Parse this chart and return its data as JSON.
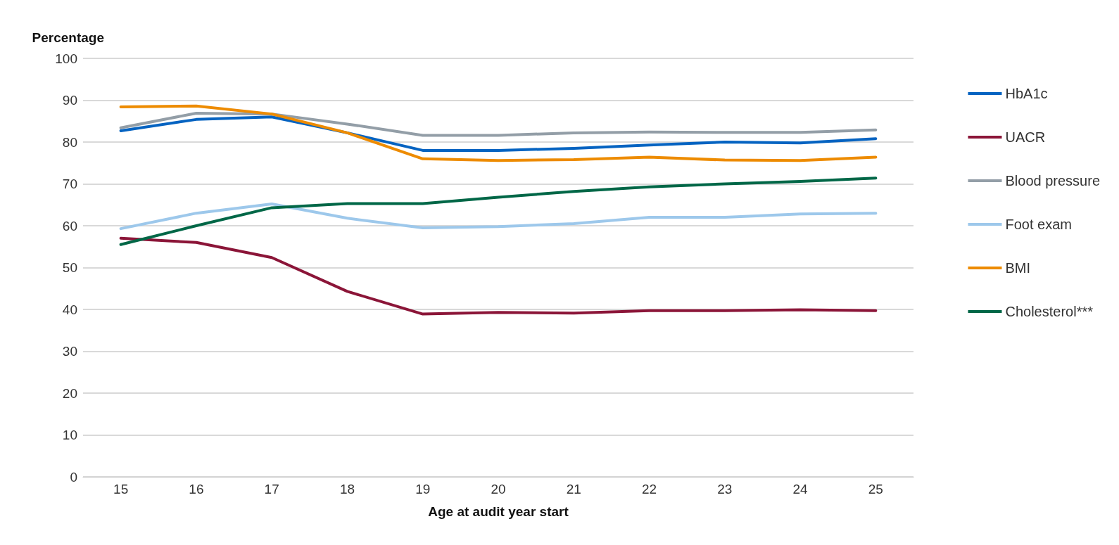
{
  "chart_data": {
    "type": "line",
    "ylabel": "Percentage",
    "xlabel": "Age at audit year start",
    "categories": [
      "15",
      "16",
      "17",
      "18",
      "19",
      "20",
      "21",
      "22",
      "23",
      "24",
      "25"
    ],
    "ylim": [
      0,
      100
    ],
    "yticks": [
      0,
      10,
      20,
      30,
      40,
      50,
      60,
      70,
      80,
      90,
      100
    ],
    "grid": "y",
    "legend": "right",
    "marker": "none",
    "line_style": "solid",
    "series": [
      {
        "name": "HbA1c",
        "color": "#0563c1",
        "values": [
          82.7,
          85.4,
          86.0,
          82.2,
          78.0,
          78.0,
          78.5,
          79.3,
          80.0,
          79.8,
          80.8
        ]
      },
      {
        "name": "UACR",
        "color": "#8b1538",
        "values": [
          57.0,
          56.0,
          52.4,
          44.3,
          38.9,
          39.3,
          39.1,
          39.7,
          39.7,
          39.9,
          39.7
        ]
      },
      {
        "name": "Blood pressure",
        "color": "#939ea7",
        "values": [
          83.4,
          86.9,
          86.7,
          84.3,
          81.6,
          81.6,
          82.2,
          82.4,
          82.3,
          82.3,
          82.9
        ]
      },
      {
        "name": "Foot exam",
        "color": "#9dc8eb",
        "values": [
          59.3,
          63.0,
          65.2,
          61.8,
          59.5,
          59.8,
          60.5,
          62.0,
          62.0,
          62.8,
          63.0
        ]
      },
      {
        "name": "BMI",
        "color": "#ed8b00",
        "values": [
          88.4,
          88.6,
          86.7,
          82.2,
          76.0,
          75.6,
          75.8,
          76.4,
          75.7,
          75.6,
          76.4
        ]
      },
      {
        "name": "Cholesterol***",
        "color": "#006747",
        "values": [
          55.5,
          60.0,
          64.3,
          65.3,
          65.3,
          66.8,
          68.2,
          69.3,
          70.0,
          70.6,
          71.4
        ]
      }
    ]
  }
}
